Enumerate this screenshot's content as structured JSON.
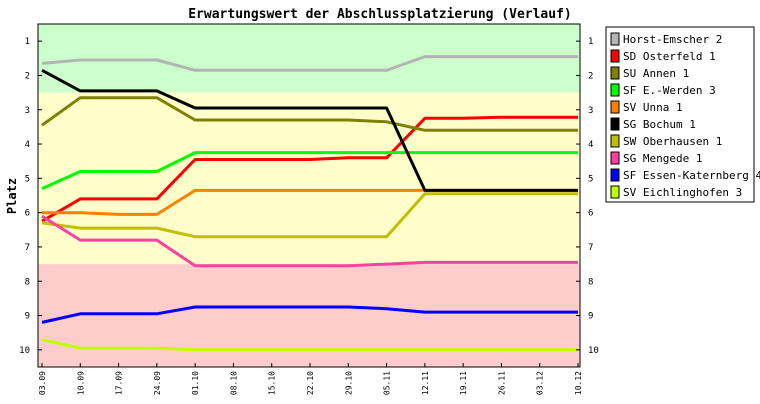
{
  "chart_data": {
    "type": "line",
    "title": "Erwartungswert der Abschlussplatzierung (Verlauf)",
    "ylabel": "Platz",
    "xlabel": "",
    "ylim": [
      0.5,
      10.5
    ],
    "y_inverted": true,
    "y_ticks": [
      1,
      2,
      3,
      4,
      5,
      6,
      7,
      8,
      9,
      10
    ],
    "grid": false,
    "legend_position": "right",
    "background_bands": [
      {
        "from": 0.5,
        "to": 2.5,
        "color": "#ccffcc"
      },
      {
        "from": 2.5,
        "to": 7.5,
        "color": "#ffffcc"
      },
      {
        "from": 7.5,
        "to": 10.5,
        "color": "#ffcccc"
      }
    ],
    "categories": [
      "03.09",
      "10.09",
      "17.09",
      "24.09",
      "01.10",
      "08.10",
      "15.10",
      "22.10",
      "29.10",
      "05.11",
      "12.11",
      "19.11",
      "26.11",
      "03.12",
      "10.12"
    ],
    "series": [
      {
        "name": "Horst-Emscher 2",
        "color": "#b4b4b4",
        "values": [
          1.65,
          1.55,
          1.55,
          1.55,
          1.85,
          1.85,
          1.85,
          1.85,
          1.85,
          1.85,
          1.45,
          1.45,
          1.45,
          1.45,
          1.45
        ]
      },
      {
        "name": "SD Osterfeld 1",
        "color": "#ff0000",
        "values": [
          6.25,
          5.6,
          5.6,
          5.6,
          4.45,
          4.45,
          4.45,
          4.45,
          4.4,
          4.4,
          3.25,
          3.25,
          3.22,
          3.22,
          3.22
        ]
      },
      {
        "name": "SU Annen 1",
        "color": "#808000",
        "values": [
          3.45,
          2.65,
          2.65,
          2.65,
          3.3,
          3.3,
          3.3,
          3.3,
          3.3,
          3.35,
          3.6,
          3.6,
          3.6,
          3.6,
          3.6
        ]
      },
      {
        "name": "SF E.-Werden 3",
        "color": "#00ff00",
        "values": [
          5.3,
          4.8,
          4.8,
          4.8,
          4.25,
          4.25,
          4.25,
          4.25,
          4.25,
          4.25,
          4.25,
          4.25,
          4.25,
          4.25,
          4.25
        ]
      },
      {
        "name": "SV Unna 1",
        "color": "#ff8000",
        "values": [
          6.0,
          6.0,
          6.05,
          6.05,
          5.35,
          5.35,
          5.35,
          5.35,
          5.35,
          5.35,
          5.35,
          5.35,
          5.35,
          5.35,
          5.35
        ]
      },
      {
        "name": "SG Bochum 1",
        "color": "#000000",
        "values": [
          1.85,
          2.45,
          2.45,
          2.45,
          2.95,
          2.95,
          2.95,
          2.95,
          2.95,
          2.95,
          5.35,
          5.35,
          5.35,
          5.35,
          5.35
        ]
      },
      {
        "name": "SW Oberhausen 1",
        "color": "#c0c000",
        "values": [
          6.3,
          6.45,
          6.45,
          6.45,
          6.7,
          6.7,
          6.7,
          6.7,
          6.7,
          6.7,
          5.45,
          5.45,
          5.45,
          5.45,
          5.45
        ]
      },
      {
        "name": "SG Mengede 1",
        "color": "#ff40a0",
        "values": [
          6.1,
          6.8,
          6.8,
          6.8,
          7.55,
          7.55,
          7.55,
          7.55,
          7.55,
          7.5,
          7.45,
          7.45,
          7.45,
          7.45,
          7.45
        ]
      },
      {
        "name": "SF Essen-Katernberg 4",
        "color": "#0000ff",
        "values": [
          9.2,
          8.95,
          8.95,
          8.95,
          8.75,
          8.75,
          8.75,
          8.75,
          8.75,
          8.8,
          8.9,
          8.9,
          8.9,
          8.9,
          8.9
        ]
      },
      {
        "name": "SV Eichlinghofen 3",
        "color": "#c0ff00",
        "values": [
          9.7,
          9.95,
          9.95,
          9.95,
          10.0,
          10.0,
          10.0,
          10.0,
          10.0,
          10.0,
          10.0,
          10.0,
          10.0,
          10.0,
          10.0
        ]
      }
    ]
  }
}
